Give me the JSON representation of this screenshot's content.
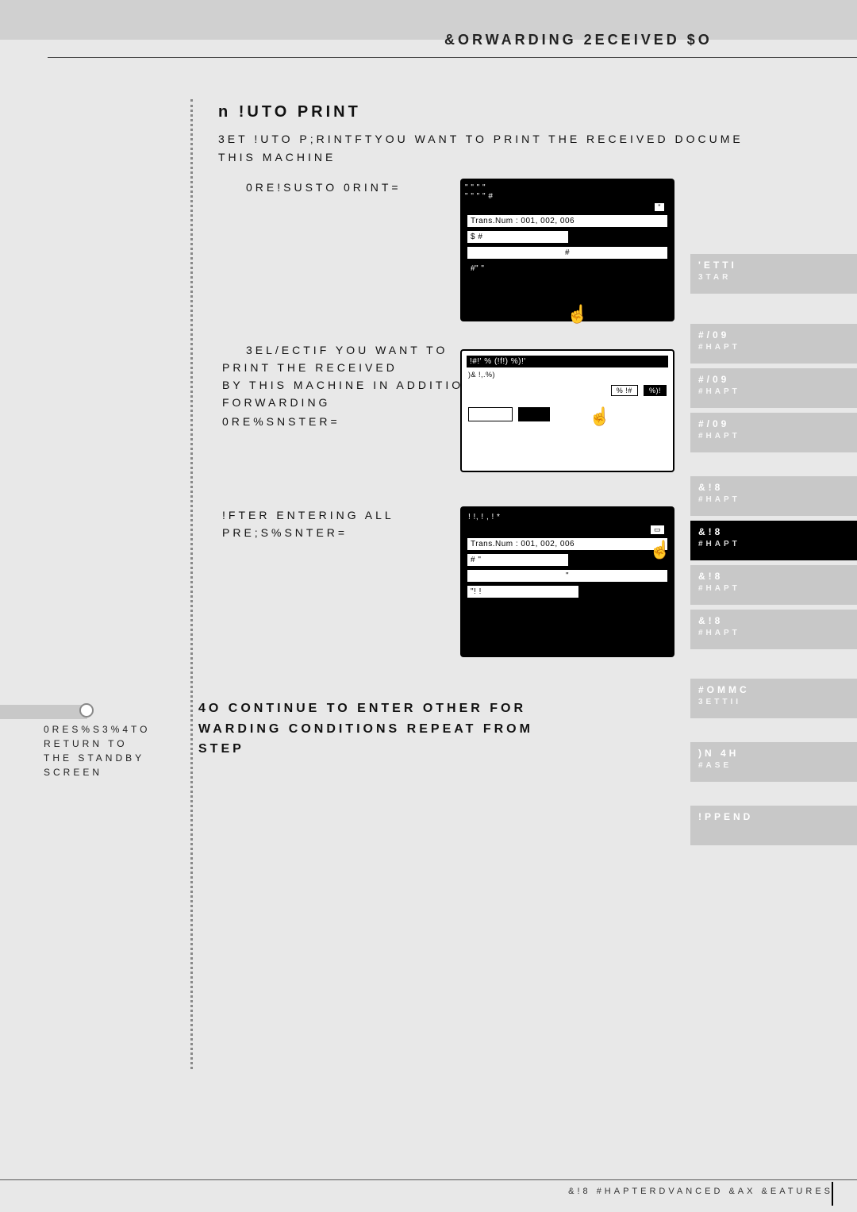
{
  "page": {
    "header": "&ORWARDING 2ECEIVED $O",
    "footer": "&!8 #HAPTERDVANCED &AX &EATURES"
  },
  "section": {
    "title": "n !UTO PRINT",
    "desc1": "3ET !UTO P;RINTFTYOU WANT TO PRINT THE RECEIVED DOCUME",
    "desc2": "THIS MACHINE"
  },
  "step10": {
    "text": "0RE!SUSTO 0RINT="
  },
  "step11": {
    "line1": "3EL/ECTIF YOU WANT TO",
    "line2": "PRINT THE RECEIVED",
    "line3": "BY THIS MACHINE IN ADDITION TO",
    "line4": "FORWARDING",
    "line5": "0RE%SNSTER="
  },
  "step12": {
    "line1": "!FTER ENTERING ALL",
    "line2": "PRE;S%SNTER="
  },
  "continue": {
    "line1": "4O CONTINUE TO ENTER OTHER FOR",
    "line2": "WARDING CONDITIONS REPEAT FROM",
    "line3": "STEP"
  },
  "note": {
    "line1": "0RES%S3%4TO RETURN TO",
    "line2": "THE STANDBY SCREEN"
  },
  "lcd1": {
    "top_symbols": "\" \" \" \"",
    "top_symbols2": "\" \" \" \" #",
    "trans": "Trans.Num : 001, 002, 006",
    "row1": "$ #",
    "row2": "#",
    "row3": "#\" \"",
    "tab": "\""
  },
  "lcd2": {
    "header": "!#!'     % (!f!) %)!'",
    "sub": ")& !,.%)",
    "tab_off": "% !#",
    "tab_on": "%)!"
  },
  "lcd3": {
    "top": "! !, ! , ! *",
    "trans": "Trans.Num : 001, 002, 006",
    "row1": "# \"",
    "row2": "\"",
    "row3": "\"! !"
  },
  "tabs": [
    {
      "l1": "'ETTI",
      "l2": "3TAR"
    },
    {
      "l1": "#/09",
      "l2": "#HAPT"
    },
    {
      "l1": "#/09",
      "l2": "#HAPT"
    },
    {
      "l1": "#/09",
      "l2": "#HAPT"
    },
    {
      "l1": "&!8",
      "l2": "#HAPT"
    },
    {
      "l1": "&!8",
      "l2": "#HAPT"
    },
    {
      "l1": "&!8",
      "l2": "#HAPT"
    },
    {
      "l1": "&!8",
      "l2": "#HAPT"
    },
    {
      "l1": "#OMMC",
      "l2": "3ETTII"
    },
    {
      "l1": ")N 4H",
      "l2": "#ASE"
    },
    {
      "l1": "!PPEND",
      "l2": ""
    }
  ],
  "tabs_active_index": 5,
  "colors": {
    "page_bg": "#e8e8e8",
    "tab_inactive": "#c8c8c8",
    "tab_active": "#000000",
    "text": "#111111"
  }
}
